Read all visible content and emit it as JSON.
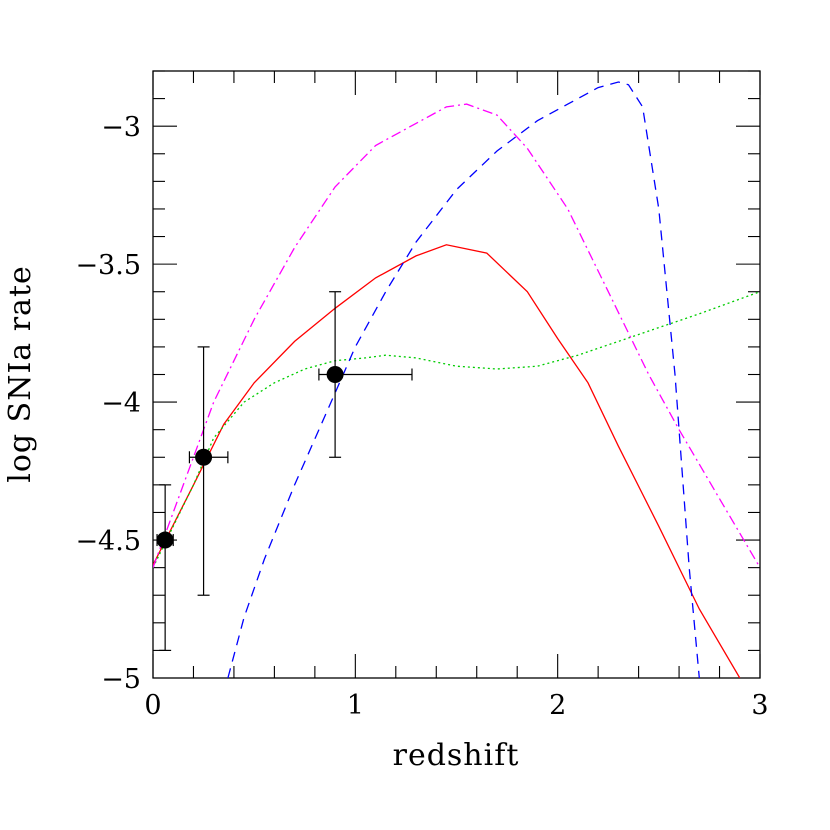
{
  "chart_data": {
    "type": "line",
    "title": "",
    "xlabel": "redshift",
    "ylabel": "log SNIa rate",
    "xlim": [
      0,
      3
    ],
    "ylim": [
      -5,
      -2.8
    ],
    "x_ticks": [
      {
        "value": 0,
        "label": "0"
      },
      {
        "value": 1,
        "label": "1"
      },
      {
        "value": 2,
        "label": "2"
      },
      {
        "value": 3,
        "label": "3"
      }
    ],
    "y_ticks": [
      {
        "value": -3,
        "label": "−3"
      },
      {
        "value": -3.5,
        "label": "−3.5"
      },
      {
        "value": -4,
        "label": "−4"
      },
      {
        "value": -4.5,
        "label": "−4.5"
      },
      {
        "value": -5,
        "label": "−5"
      }
    ],
    "grid": false,
    "series": [
      {
        "color": "#ff0000",
        "dash": "solid",
        "x": [
          0,
          0.2,
          0.35,
          0.5,
          0.7,
          0.9,
          1.1,
          1.3,
          1.45,
          1.65,
          1.85,
          2.0,
          2.15,
          2.3,
          2.5,
          2.7,
          2.9
        ],
        "y": [
          -4.59,
          -4.3,
          -4.08,
          -3.93,
          -3.78,
          -3.66,
          -3.55,
          -3.47,
          -3.43,
          -3.46,
          -3.6,
          -3.77,
          -3.93,
          -4.16,
          -4.45,
          -4.75,
          -5.0
        ]
      },
      {
        "color": "#00cc00",
        "dash": "dotted",
        "x": [
          0,
          0.1,
          0.2,
          0.3,
          0.45,
          0.6,
          0.75,
          0.9,
          1.05,
          1.15,
          1.3,
          1.5,
          1.7,
          1.9,
          2.1,
          2.3,
          2.5,
          2.7,
          3.0
        ],
        "y": [
          -4.6,
          -4.45,
          -4.3,
          -4.13,
          -4.0,
          -3.93,
          -3.88,
          -3.85,
          -3.84,
          -3.83,
          -3.84,
          -3.87,
          -3.88,
          -3.87,
          -3.83,
          -3.78,
          -3.73,
          -3.68,
          -3.6
        ]
      },
      {
        "color": "#0000ff",
        "dash": "dashed",
        "x": [
          0.37,
          0.45,
          0.55,
          0.7,
          0.85,
          1.0,
          1.15,
          1.3,
          1.5,
          1.7,
          1.9,
          2.05,
          2.2,
          2.3,
          2.35,
          2.42,
          2.5,
          2.58,
          2.65,
          2.7
        ],
        "y": [
          -5.0,
          -4.78,
          -4.57,
          -4.3,
          -4.05,
          -3.8,
          -3.6,
          -3.42,
          -3.23,
          -3.09,
          -2.98,
          -2.92,
          -2.86,
          -2.84,
          -2.85,
          -2.93,
          -3.3,
          -3.9,
          -4.6,
          -5.0
        ]
      },
      {
        "color": "#ff00ff",
        "dash": "dashdot",
        "x": [
          0,
          0.15,
          0.3,
          0.5,
          0.7,
          0.9,
          1.1,
          1.3,
          1.45,
          1.55,
          1.7,
          1.85,
          2.05,
          2.25,
          2.45,
          2.6,
          2.8,
          3.0
        ],
        "y": [
          -4.6,
          -4.3,
          -4.0,
          -3.7,
          -3.44,
          -3.22,
          -3.07,
          -2.99,
          -2.93,
          -2.92,
          -2.96,
          -3.08,
          -3.3,
          -3.6,
          -3.9,
          -4.1,
          -4.35,
          -4.6
        ]
      }
    ],
    "data_points": [
      {
        "x": 0.06,
        "y": -4.5,
        "xerr": [
          0.04,
          0.04
        ],
        "yerr": [
          0.4,
          0.2
        ]
      },
      {
        "x": 0.25,
        "y": -4.2,
        "xerr": [
          0.07,
          0.12
        ],
        "yerr": [
          0.5,
          0.4
        ]
      },
      {
        "x": 0.9,
        "y": -3.9,
        "xerr": [
          0.08,
          0.38
        ],
        "yerr": [
          0.3,
          0.3
        ]
      }
    ]
  }
}
